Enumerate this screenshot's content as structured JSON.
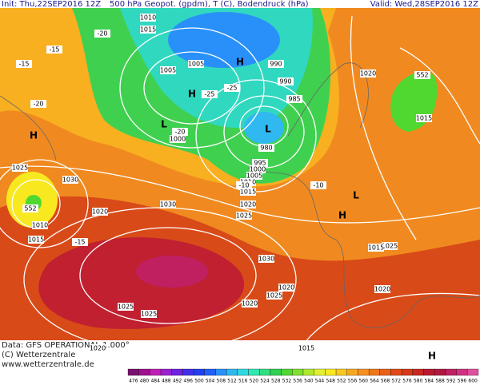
{
  "header": {
    "init": "Init: Thu,22SEP2016 12Z",
    "title": "500 hPa Geopot. (gpdm), T (C), Bodendruck (hPa)",
    "valid": "Valid: Wed,28SEP2016 12Z"
  },
  "footer": {
    "data": "Data: GFS OPERATIONAL 1.000°",
    "copyright": "(C) Wetterzentrale",
    "url": "www.wetterzentrale.de"
  },
  "colorbar": {
    "ticks": [
      476,
      480,
      484,
      488,
      492,
      496,
      500,
      504,
      508,
      512,
      516,
      520,
      524,
      528,
      532,
      536,
      540,
      544,
      548,
      552,
      556,
      560,
      564,
      568,
      572,
      576,
      580,
      584,
      588,
      592,
      596,
      600
    ],
    "colors": [
      "#7a1070",
      "#a0108f",
      "#c020b8",
      "#9a20d0",
      "#7020e0",
      "#4030e8",
      "#2040f0",
      "#2060f8",
      "#2890f8",
      "#30b8f0",
      "#30d8e0",
      "#30e8b0",
      "#30e080",
      "#30d050",
      "#50d830",
      "#80e030",
      "#b0e830",
      "#e0f030",
      "#f8e820",
      "#f8c820",
      "#f8a820",
      "#f89020",
      "#f07818",
      "#e86018",
      "#e04818",
      "#d83818",
      "#c82820",
      "#b81830",
      "#b01840",
      "#c02060",
      "#d03080",
      "#e050a0"
    ]
  },
  "map_labels": [
    "1010",
    "1015",
    "1005",
    "1005",
    "H",
    "H",
    "L",
    "L",
    "990",
    "990",
    "985",
    "980",
    "995",
    "1000",
    "1005",
    "1010",
    "1015",
    "1020",
    "1025",
    "H",
    "1025",
    "1030",
    "552",
    "1010",
    "1015",
    "1020",
    "1030",
    "L",
    "H",
    "1025",
    "1030",
    "1020",
    "1025",
    "1015",
    "1020",
    "1015",
    "552",
    "1015",
    "1020",
    "1025",
    "-15",
    "-20",
    "-25",
    "-10",
    "-15",
    "-20",
    "-10",
    "-15",
    "-20",
    "-25",
    "1000",
    "1020",
    "1025",
    "1020",
    "H"
  ]
}
